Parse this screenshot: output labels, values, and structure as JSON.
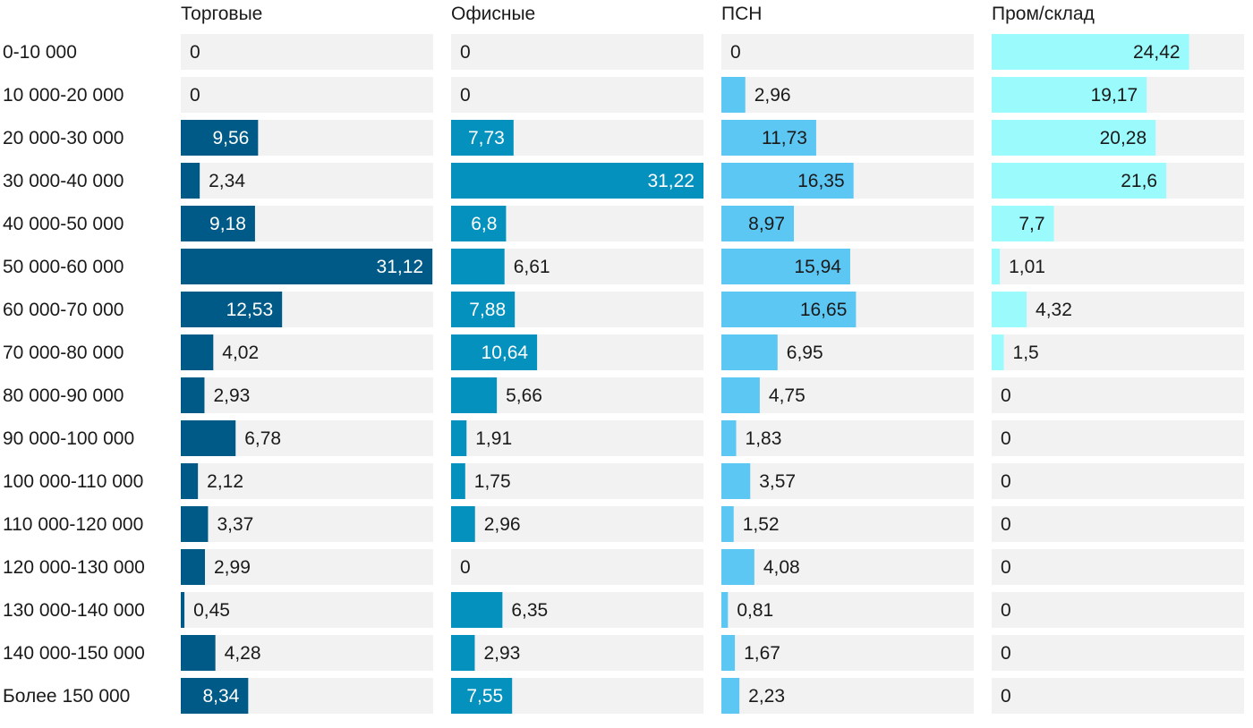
{
  "chart_data": {
    "type": "bar",
    "orientation": "horizontal",
    "layout": "small-multiples",
    "shared_max": 31.22,
    "categories": [
      "0-10 000",
      "10 000-20 000",
      "20 000-30 000",
      "30 000-40 000",
      "40 000-50 000",
      "50 000-60 000",
      "60 000-70 000",
      "70 000-80 000",
      "80 000-90 000",
      "90 000-100 000",
      "100 000-110 000",
      "110 000-120 000",
      "120 000-130 000",
      "130 000-140 000",
      "140 000-150 000",
      "Более 150 000"
    ],
    "series": [
      {
        "name": "Торговые",
        "color": "#005a87",
        "labels": [
          "0",
          "0",
          "9,56",
          "2,34",
          "9,18",
          "31,12",
          "12,53",
          "4,02",
          "2,93",
          "6,78",
          "2,12",
          "3,37",
          "2,99",
          "0,45",
          "4,28",
          "8,34"
        ],
        "values": [
          0,
          0,
          9.56,
          2.34,
          9.18,
          31.12,
          12.53,
          4.02,
          2.93,
          6.78,
          2.12,
          3.37,
          2.99,
          0.45,
          4.28,
          8.34
        ]
      },
      {
        "name": "Офисные",
        "color": "#0591be",
        "labels": [
          "0",
          "0",
          "7,73",
          "31,22",
          "6,8",
          "6,61",
          "7,88",
          "10,64",
          "5,66",
          "1,91",
          "1,75",
          "2,96",
          "0",
          "6,35",
          "2,93",
          "7,55"
        ],
        "values": [
          0,
          0,
          7.73,
          31.22,
          6.8,
          6.61,
          7.88,
          10.64,
          5.66,
          1.91,
          1.75,
          2.96,
          0,
          6.35,
          2.93,
          7.55
        ]
      },
      {
        "name": "ПСН",
        "color": "#5dc7f3",
        "labels": [
          "0",
          "2,96",
          "11,73",
          "16,35",
          "8,97",
          "15,94",
          "16,65",
          "6,95",
          "4,75",
          "1,83",
          "3,57",
          "1,52",
          "4,08",
          "0,81",
          "1,67",
          "2,23"
        ],
        "values": [
          0,
          2.96,
          11.73,
          16.35,
          8.97,
          15.94,
          16.65,
          6.95,
          4.75,
          1.83,
          3.57,
          1.52,
          4.08,
          0.81,
          1.67,
          2.23
        ]
      },
      {
        "name": "Пром/склад",
        "color": "#9bfafc",
        "labels": [
          "24,42",
          "19,17",
          "20,28",
          "21,6",
          "7,7",
          "1,01",
          "4,32",
          "1,5",
          "0",
          "0",
          "0",
          "0",
          "0",
          "0",
          "0",
          "0"
        ],
        "values": [
          24.42,
          19.17,
          20.28,
          21.6,
          7.7,
          1.01,
          4.32,
          1.5,
          0,
          0,
          0,
          0,
          0,
          0,
          0,
          0
        ]
      }
    ],
    "track_color": "#f2f2f2"
  }
}
